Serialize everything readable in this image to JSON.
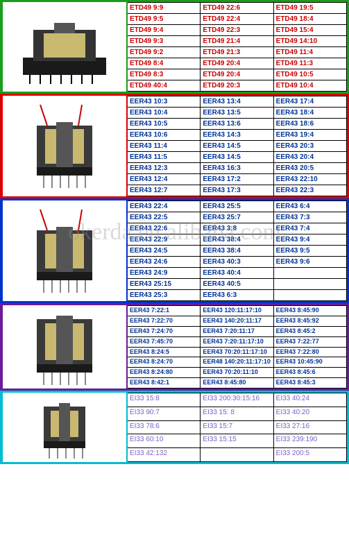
{
  "watermark": "okerda.en.alibaba.com",
  "sections": [
    {
      "id": "etd49",
      "borderClass": "sec-green",
      "textColor": "#c00",
      "imageType": "transformer-flat",
      "rows": [
        [
          "ETD49  9:9",
          "ETD49  22:6",
          "ETD49  19:5"
        ],
        [
          "ETD49  9:5",
          "ETD49  22:4",
          "ETD49  18:4"
        ],
        [
          "ETD49  9:4",
          "ETD49  22:3",
          "ETD49  15:4"
        ],
        [
          "ETD49  9:3",
          "ETD49  21:4",
          "ETD49  14:10"
        ],
        [
          "ETD49  9:2",
          "ETD49  21:3",
          "ETD49  11:4"
        ],
        [
          "ETD49  8:4",
          "ETD49  20:4",
          "ETD49  11:3"
        ],
        [
          "ETD49  8:3",
          "ETD49  20:4",
          "ETD49  10:5"
        ],
        [
          "ETD49  40:4",
          "ETD49  20:3",
          "ETD49  10:4"
        ]
      ]
    },
    {
      "id": "eer43-a",
      "borderClass": "sec-red",
      "textColor": "#003399",
      "imageType": "transformer-wires",
      "rows": [
        [
          "EER43  10:3",
          "EER43  13:4",
          "EER43  17:4"
        ],
        [
          "EER43  10:4",
          "EER43  13:5",
          "EER43  18:4"
        ],
        [
          "EER43  10:5",
          "EER43  13:6",
          "EER43  18:6"
        ],
        [
          "EER43  10:6",
          "EER43  14:3",
          "EER43  19:4"
        ],
        [
          "EER43  11:4",
          "EER43  14:5",
          "EER43  20:3"
        ],
        [
          "EER43  11:5",
          "EER43  14:5",
          "EER43  20:4"
        ],
        [
          "EER43  12:3",
          "EER43  16:3",
          "EER43  20:5"
        ],
        [
          "EER43  12:4",
          "EER43  17:2",
          "EER43  22:10"
        ],
        [
          "EER43  12:7",
          "EER43  17:3",
          "EER43  22:3"
        ]
      ]
    },
    {
      "id": "eer43-b",
      "borderClass": "sec-blue",
      "textColor": "#003399",
      "imageType": "transformer-wires",
      "rows": [
        [
          "EER43  22:4",
          "EER43  25:5",
          "EER43  6:4"
        ],
        [
          "EER43  22:5",
          "EER43  25:7",
          "EER43  7:3"
        ],
        [
          "EER43  22:6",
          "EER43  3:8",
          "EER43  7:4"
        ],
        [
          "EER43  22:9",
          "EER43  38:4",
          "EER43  9:4"
        ],
        [
          "EER43  24:5",
          "EER43  38:4",
          "EER43  9:5"
        ],
        [
          "EER43  24:6",
          "EER43  40:3",
          "EER43  9:6"
        ],
        [
          "EER43  24:9",
          "EER43  40:4",
          ""
        ],
        [
          "EER43  25:15",
          "EER43  40:5",
          ""
        ],
        [
          "EER43  25:3",
          "EER43  6:3",
          ""
        ]
      ]
    },
    {
      "id": "eer43-c",
      "borderClass": "sec-purple small-font",
      "textColor": "#003399",
      "imageType": "transformer-plain",
      "rows": [
        [
          "EER43  7:22:1",
          "EER43  120:11:17:10",
          "EER43  8:45:90"
        ],
        [
          "EER43  7:22:70",
          "EER43  140:20:11:17",
          "EER43  8:45:92"
        ],
        [
          "EER43  7:24:70",
          "EER43  7:20:11:17",
          "EER43  8:45:2"
        ],
        [
          "EER43  7:45:70",
          "EER43  7:20:11:17:10",
          "EER43  7:22:77"
        ],
        [
          "EER43  8:24:5",
          "EER43  70:20:11:17:10",
          "EER43  7:22:80"
        ],
        [
          "EER43  8:24:70",
          "EER48  140:20:11:17:10",
          "EER43  10:45:90"
        ],
        [
          "EER43  8:24:80",
          "EER43  70:20:11:10",
          "EER43  8:45:6"
        ],
        [
          "EER43  8:42:1",
          "EER43  8:45:80",
          "EER43  8:45:3"
        ]
      ]
    },
    {
      "id": "ei33",
      "borderClass": "sec-cyan",
      "textColor": "#7b5fc9",
      "imageType": "transformer-small",
      "rows": [
        [
          "EI33  15:8",
          "EI33  200:30:15:16",
          "EI33  40:24"
        ],
        [
          "EI33  90:7",
          "EI33  15: 8",
          "EI33  40:20"
        ],
        [
          "EI33  78:6",
          "EI33  15:7",
          "EI33  27:16"
        ],
        [
          "EI33  60:10",
          "EI33  15:15",
          "EI33  239:190"
        ],
        [
          "EI33  42:132",
          "",
          "EI33  200:5"
        ]
      ]
    }
  ]
}
